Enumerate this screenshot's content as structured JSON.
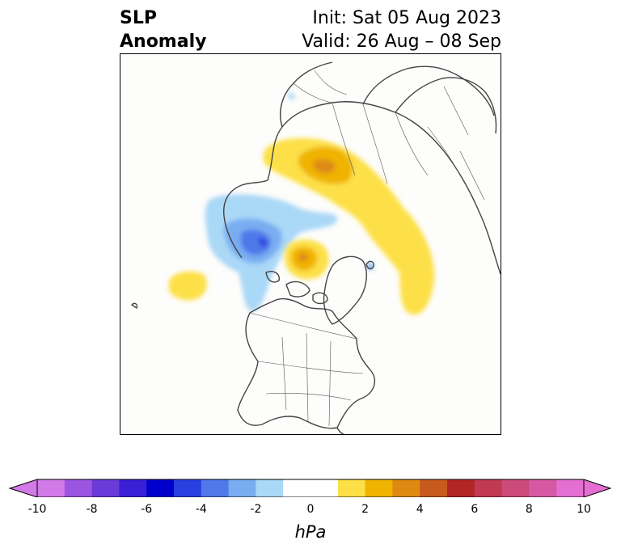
{
  "title": {
    "left_line1": "SLP",
    "left_line2": "Anomaly",
    "right_line1": "Init: Sat 05 Aug 2023",
    "right_line2": "Valid: 26 Aug – 08 Sep"
  },
  "colorbar": {
    "units": "hPa",
    "tick_labels": [
      "-10",
      "-8",
      "-6",
      "-4",
      "-2",
      "0",
      "2",
      "4",
      "6",
      "8",
      "10"
    ],
    "bins": [
      {
        "lo": -10,
        "hi": -9,
        "color": "#d27ae8"
      },
      {
        "lo": -9,
        "hi": -8,
        "color": "#9b55e0"
      },
      {
        "lo": -8,
        "hi": -7,
        "color": "#6b3ad8"
      },
      {
        "lo": -7,
        "hi": -6,
        "color": "#3a1fd6"
      },
      {
        "lo": -6,
        "hi": -5,
        "color": "#0000cc"
      },
      {
        "lo": -5,
        "hi": -4,
        "color": "#2a3fe0"
      },
      {
        "lo": -4,
        "hi": -3,
        "color": "#4f78ea"
      },
      {
        "lo": -3,
        "hi": -2,
        "color": "#79adf1"
      },
      {
        "lo": -2,
        "hi": -1,
        "color": "#aad8f7"
      },
      {
        "lo": -1,
        "hi": 1,
        "color": "#ffffff"
      },
      {
        "lo": 1,
        "hi": 2,
        "color": "#fde047"
      },
      {
        "lo": 2,
        "hi": 3,
        "color": "#f0b400"
      },
      {
        "lo": 3,
        "hi": 4,
        "color": "#de8a12"
      },
      {
        "lo": 4,
        "hi": 5,
        "color": "#c95a1e"
      },
      {
        "lo": 5,
        "hi": 6,
        "color": "#b22525"
      },
      {
        "lo": 6,
        "hi": 7,
        "color": "#c13a52"
      },
      {
        "lo": 7,
        "hi": 8,
        "color": "#cb4a7a"
      },
      {
        "lo": 8,
        "hi": 9,
        "color": "#d65aa3"
      },
      {
        "lo": 9,
        "hi": 10,
        "color": "#e46ed2"
      }
    ],
    "extend_low_color": "#d27ae8",
    "extend_high_color": "#e46ed2"
  },
  "map": {
    "projection": "north-polar-stereographic",
    "coastline_color": "#444444",
    "border_color": "#555555"
  }
}
